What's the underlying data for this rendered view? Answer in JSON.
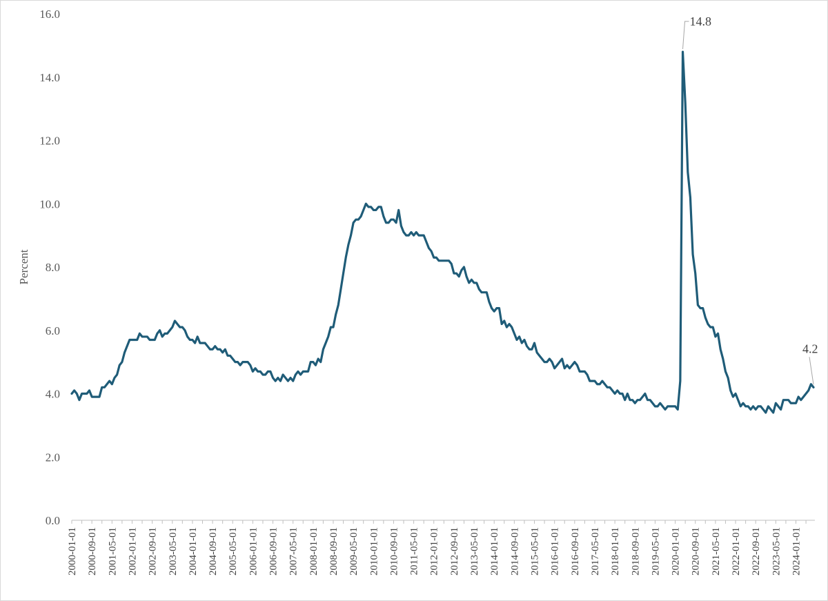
{
  "chart_data": {
    "type": "line",
    "title": "",
    "xlabel": "",
    "ylabel": "Percent",
    "ylim": [
      0,
      16
    ],
    "y_ticks": [
      "0.0",
      "2.0",
      "4.0",
      "6.0",
      "8.0",
      "10.0",
      "12.0",
      "14.0",
      "16.0"
    ],
    "x_tick_labels": [
      "2000-01-01",
      "2000-09-01",
      "2001-05-01",
      "2002-01-01",
      "2002-09-01",
      "2003-05-01",
      "2004-01-01",
      "2004-09-01",
      "2005-05-01",
      "2006-01-01",
      "2006-09-01",
      "2007-05-01",
      "2008-01-01",
      "2008-09-01",
      "2009-05-01",
      "2010-01-01",
      "2010-09-01",
      "2011-05-01",
      "2012-01-01",
      "2012-09-01",
      "2013-05-01",
      "2014-01-01",
      "2014-09-01",
      "2015-05-01",
      "2016-01-01",
      "2016-09-01",
      "2017-05-01",
      "2018-01-01",
      "2018-09-01",
      "2019-05-01",
      "2020-01-01",
      "2020-09-01",
      "2021-05-01",
      "2022-01-01",
      "2022-09-01",
      "2023-05-01",
      "2024-01-01"
    ],
    "x_start": "2000-01",
    "frequency": "monthly",
    "grid": false,
    "line_color": "#1f5c78",
    "series": [
      {
        "name": "",
        "values": [
          4.0,
          4.1,
          4.0,
          3.8,
          4.0,
          4.0,
          4.0,
          4.1,
          3.9,
          3.9,
          3.9,
          3.9,
          4.2,
          4.2,
          4.3,
          4.4,
          4.3,
          4.5,
          4.6,
          4.9,
          5.0,
          5.3,
          5.5,
          5.7,
          5.7,
          5.7,
          5.7,
          5.9,
          5.8,
          5.8,
          5.8,
          5.7,
          5.7,
          5.7,
          5.9,
          6.0,
          5.8,
          5.9,
          5.9,
          6.0,
          6.1,
          6.3,
          6.2,
          6.1,
          6.1,
          6.0,
          5.8,
          5.7,
          5.7,
          5.6,
          5.8,
          5.6,
          5.6,
          5.6,
          5.5,
          5.4,
          5.4,
          5.5,
          5.4,
          5.4,
          5.3,
          5.4,
          5.2,
          5.2,
          5.1,
          5.0,
          5.0,
          4.9,
          5.0,
          5.0,
          5.0,
          4.9,
          4.7,
          4.8,
          4.7,
          4.7,
          4.6,
          4.6,
          4.7,
          4.7,
          4.5,
          4.4,
          4.5,
          4.4,
          4.6,
          4.5,
          4.4,
          4.5,
          4.4,
          4.6,
          4.7,
          4.6,
          4.7,
          4.7,
          4.7,
          5.0,
          5.0,
          4.9,
          5.1,
          5.0,
          5.4,
          5.6,
          5.8,
          6.1,
          6.1,
          6.5,
          6.8,
          7.3,
          7.8,
          8.3,
          8.7,
          9.0,
          9.4,
          9.5,
          9.5,
          9.6,
          9.8,
          10.0,
          9.9,
          9.9,
          9.8,
          9.8,
          9.9,
          9.9,
          9.6,
          9.4,
          9.4,
          9.5,
          9.5,
          9.4,
          9.8,
          9.3,
          9.1,
          9.0,
          9.0,
          9.1,
          9.0,
          9.1,
          9.0,
          9.0,
          9.0,
          8.8,
          8.6,
          8.5,
          8.3,
          8.3,
          8.2,
          8.2,
          8.2,
          8.2,
          8.2,
          8.1,
          7.8,
          7.8,
          7.7,
          7.9,
          8.0,
          7.7,
          7.5,
          7.6,
          7.5,
          7.5,
          7.3,
          7.2,
          7.2,
          7.2,
          6.9,
          6.7,
          6.6,
          6.7,
          6.7,
          6.2,
          6.3,
          6.1,
          6.2,
          6.1,
          5.9,
          5.7,
          5.8,
          5.6,
          5.7,
          5.5,
          5.4,
          5.4,
          5.6,
          5.3,
          5.2,
          5.1,
          5.0,
          5.0,
          5.1,
          5.0,
          4.8,
          4.9,
          5.0,
          5.1,
          4.8,
          4.9,
          4.8,
          4.9,
          5.0,
          4.9,
          4.7,
          4.7,
          4.7,
          4.6,
          4.4,
          4.4,
          4.4,
          4.3,
          4.3,
          4.4,
          4.3,
          4.2,
          4.2,
          4.1,
          4.0,
          4.1,
          4.0,
          4.0,
          3.8,
          4.0,
          3.8,
          3.8,
          3.7,
          3.8,
          3.8,
          3.9,
          4.0,
          3.8,
          3.8,
          3.7,
          3.6,
          3.6,
          3.7,
          3.6,
          3.5,
          3.6,
          3.6,
          3.6,
          3.6,
          3.5,
          4.4,
          14.8,
          13.2,
          11.0,
          10.2,
          8.4,
          7.8,
          6.8,
          6.7,
          6.7,
          6.4,
          6.2,
          6.1,
          6.1,
          5.8,
          5.9,
          5.4,
          5.1,
          4.7,
          4.5,
          4.1,
          3.9,
          4.0,
          3.8,
          3.6,
          3.7,
          3.6,
          3.6,
          3.5,
          3.6,
          3.5,
          3.6,
          3.6,
          3.5,
          3.4,
          3.6,
          3.5,
          3.4,
          3.7,
          3.6,
          3.5,
          3.8,
          3.8,
          3.8,
          3.7,
          3.7,
          3.7,
          3.9,
          3.8,
          3.9,
          4.0,
          4.1,
          4.3,
          4.2
        ]
      }
    ],
    "annotations": [
      {
        "label": "14.8",
        "date": "2020-04",
        "value": 14.8
      },
      {
        "label": "4.2",
        "date": "2024-08",
        "value": 4.2
      }
    ]
  }
}
